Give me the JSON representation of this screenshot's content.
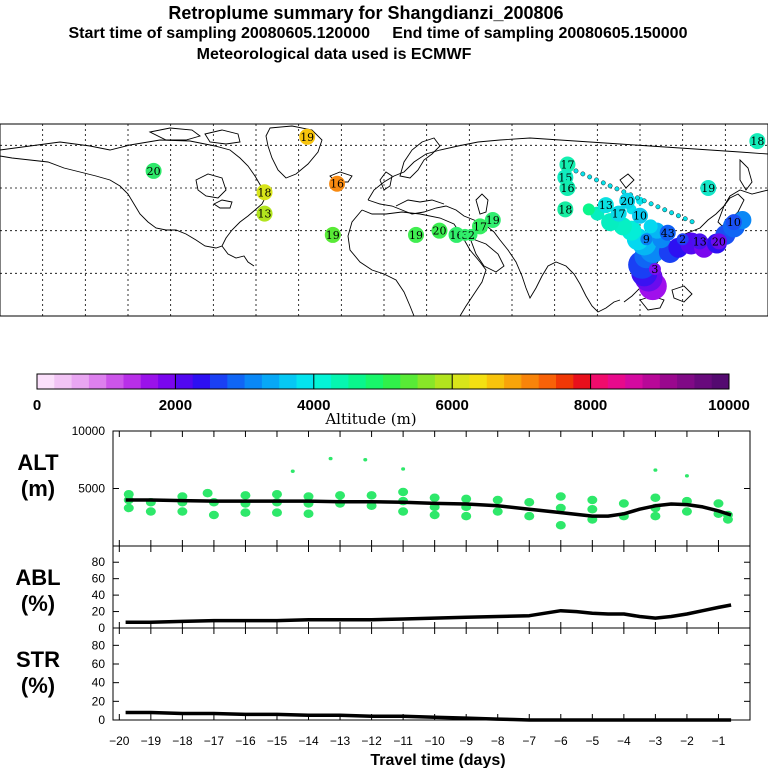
{
  "header": {
    "title": "Retroplume summary for Shangdianzi_200806",
    "sampling": "Start time of sampling 20080605.120000     End time of sampling 20080605.150000",
    "met": "Meteorological data used is ECMWF"
  },
  "colorbar": {
    "label": "Altitude (m)",
    "ticks": [
      "0",
      "2000",
      "4000",
      "6000",
      "8000",
      "10000"
    ],
    "colors": [
      "#fbe0fb",
      "#f2c4f5",
      "#e9a6f2",
      "#dd80ee",
      "#cc55ea",
      "#b82fe8",
      "#9a12ea",
      "#7a06ee",
      "#5208f0",
      "#2d10f2",
      "#1a40f4",
      "#1066f5",
      "#0a88f6",
      "#08a8f6",
      "#06c8f4",
      "#04e4ee",
      "#04f4d6",
      "#06f6b0",
      "#0af68c",
      "#18f66a",
      "#30f04a",
      "#58ea36",
      "#88e628",
      "#b2e41e",
      "#d8e41a",
      "#f4e012",
      "#f8c40c",
      "#f8a40a",
      "#f8840a",
      "#f86208",
      "#f03806",
      "#e8101c",
      "#f00c6c",
      "#e80a8c",
      "#d40aa0",
      "#b80898",
      "#9a088e",
      "#800a86",
      "#680a7c",
      "#540a70"
    ]
  },
  "map": {
    "labels": [
      {
        "t": "20",
        "lon": -108,
        "lat": 58,
        "c": "#2ee86a"
      },
      {
        "t": "17",
        "lon": 86,
        "lat": 61,
        "c": "#14f0b0"
      },
      {
        "t": "15",
        "lon": 85,
        "lat": 55,
        "c": "#10ecc0"
      },
      {
        "t": "16",
        "lon": 86,
        "lat": 50,
        "c": "#12ecb0"
      },
      {
        "t": "18",
        "lon": 85,
        "lat": 40,
        "c": "#16eca0"
      },
      {
        "t": "19",
        "lon": 51,
        "lat": 35,
        "c": "#30ee70"
      },
      {
        "t": "17",
        "lon": 45,
        "lat": 32,
        "c": "#34ee60"
      },
      {
        "t": "20",
        "lon": 26,
        "lat": 30,
        "c": "#3aee50"
      },
      {
        "t": "13",
        "lon": 104,
        "lat": 42,
        "c": "#0ae0e0"
      },
      {
        "t": "17",
        "lon": 110,
        "lat": 38,
        "c": "#0ad8e8"
      },
      {
        "t": "20",
        "lon": 114,
        "lat": 44,
        "c": "#0ad4ea"
      },
      {
        "t": "10",
        "lon": 120,
        "lat": 37,
        "c": "#0ac8ee"
      },
      {
        "t": "9",
        "lon": 123,
        "lat": 26,
        "c": "#0a80f2"
      },
      {
        "t": "3",
        "lon": 127,
        "lat": 12,
        "c": "#7a10ee"
      },
      {
        "t": "43",
        "lon": 133,
        "lat": 29,
        "c": "#1060f4"
      },
      {
        "t": "2",
        "lon": 140,
        "lat": 26,
        "c": "#2040f4"
      },
      {
        "t": "13",
        "lon": 148,
        "lat": 25,
        "c": "#4a10f0"
      },
      {
        "t": "20",
        "lon": 157,
        "lat": 25,
        "c": "#6a0cee"
      },
      {
        "t": "10",
        "lon": 164,
        "lat": 34,
        "c": "#1a50f4"
      },
      {
        "t": "18",
        "lon": 175,
        "lat": 72,
        "c": "#12ecb8"
      },
      {
        "t": "19",
        "lon": 152,
        "lat": 50,
        "c": "#14e6c8"
      },
      {
        "t": "18",
        "lon": -56,
        "lat": 48,
        "c": "#d8e41a"
      },
      {
        "t": "16",
        "lon": -22,
        "lat": 52,
        "c": "#f88a10"
      },
      {
        "t": "19",
        "lon": -36,
        "lat": 74,
        "c": "#f8c40c"
      },
      {
        "t": "13",
        "lon": -56,
        "lat": 38,
        "c": "#b2e41e"
      },
      {
        "t": "19",
        "lon": -24,
        "lat": 28,
        "c": "#58ea36"
      },
      {
        "t": "19",
        "lon": 15,
        "lat": 28,
        "c": "#40ee50"
      },
      {
        "t": "16",
        "lon": 34,
        "lat": 28,
        "c": "#30ee6a"
      },
      {
        "t": "3",
        "lon": 38,
        "lat": 28,
        "c": "#30ee6a"
      },
      {
        "t": "2",
        "lon": 41,
        "lat": 28,
        "c": "#30ee6a"
      }
    ]
  },
  "chart_data": [
    {
      "type": "line",
      "title": "ALT",
      "ylabel": "ALT (m)",
      "ylim": [
        0,
        10000
      ],
      "yticks": [
        5000,
        10000
      ],
      "xlim": [
        -20.2,
        0
      ],
      "line": {
        "x": [
          -19.8,
          -19,
          -18,
          -17,
          -16,
          -15,
          -14,
          -13,
          -12,
          -11,
          -10,
          -9,
          -8,
          -7,
          -6,
          -5,
          -4.5,
          -4,
          -3.5,
          -3,
          -2.5,
          -2,
          -1.5,
          -1,
          -0.6
        ],
        "y": [
          4000,
          4000,
          3950,
          3900,
          3900,
          3900,
          3900,
          3850,
          3850,
          3800,
          3700,
          3650,
          3500,
          3200,
          2900,
          2600,
          2600,
          2800,
          3200,
          3500,
          3650,
          3600,
          3400,
          3050,
          2700
        ]
      },
      "scatter": {
        "x": [
          -19.7,
          -19.7,
          -19.7,
          -19,
          -19,
          -18,
          -18,
          -18,
          -17.2,
          -17,
          -17,
          -16,
          -16,
          -16,
          -15,
          -15,
          -15,
          -14.5,
          -14,
          -14,
          -14,
          -13,
          -13,
          -13.3,
          -12,
          -12,
          -12.2,
          -11,
          -11,
          -11,
          -11,
          -10,
          -10,
          -10,
          -9,
          -9,
          -9,
          -8,
          -8,
          -7,
          -7,
          -6,
          -6,
          -6,
          -5,
          -5,
          -5,
          -4,
          -4,
          -3,
          -3,
          -3,
          -3,
          -2,
          -2,
          -2,
          -1,
          -1,
          -0.7,
          -0.7
        ],
        "y": [
          4500,
          4000,
          3300,
          3800,
          3000,
          4300,
          3800,
          3000,
          4600,
          3800,
          2700,
          4400,
          3700,
          2900,
          4500,
          3800,
          2900,
          6500,
          4300,
          3700,
          2800,
          4400,
          3700,
          7600,
          4400,
          3500,
          7500,
          4700,
          3900,
          3000,
          6700,
          4200,
          3400,
          2700,
          4100,
          3400,
          2600,
          4000,
          3000,
          3800,
          2600,
          4300,
          3300,
          1800,
          4000,
          3200,
          2300,
          3700,
          2600,
          4200,
          3300,
          2600,
          6600,
          3900,
          3000,
          6100,
          3700,
          2800,
          2700,
          2300
        ],
        "color": "#2ee86a"
      }
    },
    {
      "type": "line",
      "title": "ABL",
      "ylabel": "ABL (%)",
      "ylim": [
        0,
        90
      ],
      "yticks": [
        0,
        20,
        40,
        60,
        80
      ],
      "xlim": [
        -20.2,
        0
      ],
      "x": [
        -19.8,
        -19,
        -18,
        -17,
        -16,
        -15,
        -14,
        -13,
        -12,
        -11,
        -10,
        -9,
        -8,
        -7,
        -6.5,
        -6,
        -5.5,
        -5,
        -4.5,
        -4,
        -3.5,
        -3,
        -2.5,
        -2,
        -1.5,
        -1,
        -0.6
      ],
      "y": [
        7,
        7,
        8,
        9,
        9,
        9,
        10,
        10,
        10,
        11,
        12,
        13,
        14,
        15,
        18,
        21,
        20,
        18,
        17,
        17,
        14,
        12,
        14,
        17,
        21,
        25,
        28
      ]
    },
    {
      "type": "line",
      "title": "STR",
      "ylabel": "STR (%)",
      "ylim": [
        0,
        90
      ],
      "yticks": [
        0,
        20,
        40,
        60,
        80
      ],
      "xlim": [
        -20.2,
        0
      ],
      "xlabel": "Travel time (days)",
      "xticks": [
        "−20",
        "−19",
        "−18",
        "−17",
        "−16",
        "−15",
        "−14",
        "−13",
        "−12",
        "−11",
        "−10",
        "−9",
        "−8",
        "−7",
        "−6",
        "−5",
        "−4",
        "−3",
        "−2",
        "−1"
      ],
      "x": [
        -19.8,
        -19,
        -18,
        -17,
        -16,
        -15,
        -14,
        -13,
        -12,
        -11,
        -10,
        -9,
        -8,
        -7.5,
        -7,
        -6,
        -5,
        -4,
        -3,
        -2,
        -1,
        -0.6
      ],
      "y": [
        8,
        8,
        7,
        7,
        6,
        6,
        5,
        5,
        4,
        4,
        3,
        2,
        1,
        0.5,
        0,
        0,
        0,
        0,
        0,
        0,
        0,
        0
      ]
    }
  ],
  "panels": {
    "alt": {
      "name": "ALT",
      "unit": "(m)"
    },
    "abl": {
      "name": "ABL",
      "unit": "(%)"
    },
    "str": {
      "name": "STR",
      "unit": "(%)"
    }
  }
}
